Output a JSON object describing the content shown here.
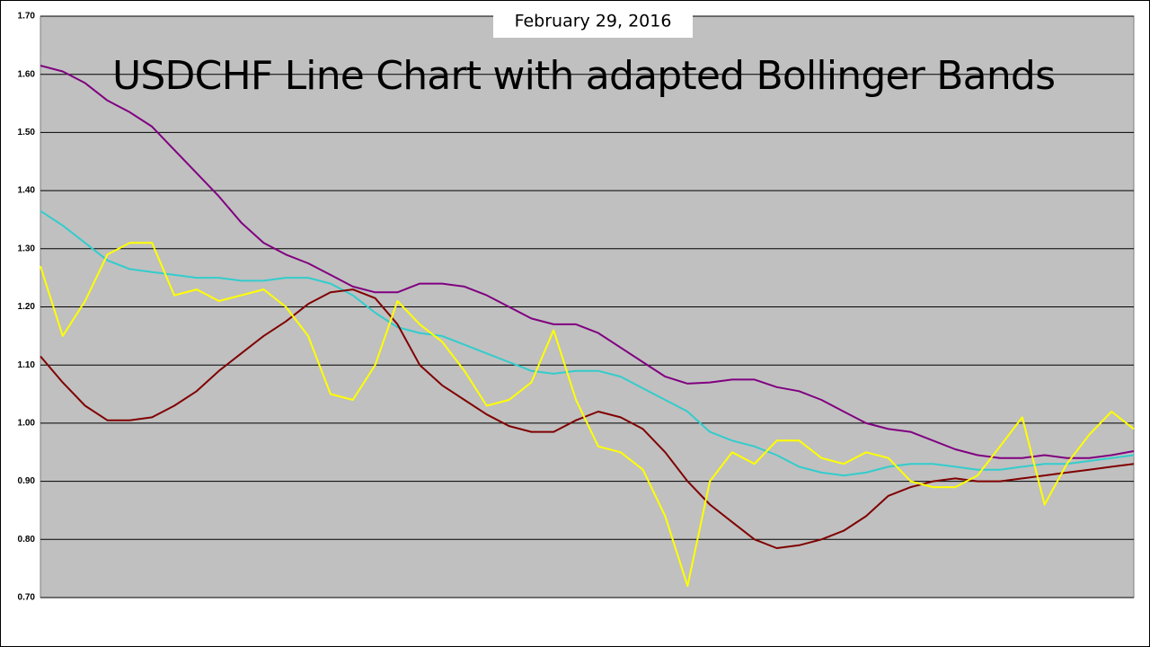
{
  "chart_data": {
    "type": "line",
    "title": "USDCHF Line Chart with adapted Bollinger Bands",
    "subtitle": "February 29, 2016",
    "ylim": [
      0.7,
      1.7
    ],
    "yticks": [
      {
        "value": 0.7,
        "label": "0.70"
      },
      {
        "value": 0.8,
        "label": "0.80"
      },
      {
        "value": 0.9,
        "label": "0.90"
      },
      {
        "value": 1.0,
        "label": "1.00"
      },
      {
        "value": 1.1,
        "label": "1.10"
      },
      {
        "value": 1.2,
        "label": "1.20"
      },
      {
        "value": 1.3,
        "label": "1.30"
      },
      {
        "value": 1.4,
        "label": "1.40"
      },
      {
        "value": 1.5,
        "label": "1.50"
      },
      {
        "value": 1.6,
        "label": "1.60"
      },
      {
        "value": 1.7,
        "label": "1.70"
      }
    ],
    "grid": true,
    "series": [
      {
        "color": "#33cccc",
        "values": [
          1.365,
          1.34,
          1.31,
          1.28,
          1.265,
          1.26,
          1.255,
          1.25,
          1.25,
          1.245,
          1.245,
          1.25,
          1.25,
          1.24,
          1.22,
          1.19,
          1.165,
          1.155,
          1.15,
          1.135,
          1.12,
          1.105,
          1.09,
          1.085,
          1.09,
          1.09,
          1.08,
          1.06,
          1.04,
          1.02,
          0.985,
          0.97,
          0.96,
          0.945,
          0.925,
          0.915,
          0.91,
          0.915,
          0.925,
          0.93,
          0.93,
          0.925,
          0.92,
          0.92,
          0.925,
          0.93,
          0.93,
          0.935,
          0.94,
          0.945
        ]
      },
      {
        "color": "#800000",
        "values": [
          1.115,
          1.07,
          1.03,
          1.005,
          1.005,
          1.01,
          1.03,
          1.055,
          1.09,
          1.12,
          1.15,
          1.175,
          1.205,
          1.225,
          1.23,
          1.215,
          1.17,
          1.1,
          1.065,
          1.04,
          1.015,
          0.995,
          0.985,
          0.985,
          1.005,
          1.02,
          1.01,
          0.99,
          0.95,
          0.9,
          0.86,
          0.83,
          0.8,
          0.785,
          0.79,
          0.8,
          0.815,
          0.84,
          0.875,
          0.89,
          0.9,
          0.905,
          0.9,
          0.9,
          0.905,
          0.91,
          0.915,
          0.92,
          0.925,
          0.93
        ]
      },
      {
        "color": "#800080",
        "values": [
          1.615,
          1.605,
          1.585,
          1.555,
          1.535,
          1.51,
          1.47,
          1.43,
          1.39,
          1.345,
          1.31,
          1.29,
          1.275,
          1.255,
          1.235,
          1.225,
          1.225,
          1.24,
          1.24,
          1.235,
          1.22,
          1.2,
          1.18,
          1.17,
          1.17,
          1.155,
          1.13,
          1.105,
          1.08,
          1.068,
          1.07,
          1.075,
          1.075,
          1.062,
          1.055,
          1.04,
          1.02,
          1.0,
          0.99,
          0.985,
          0.97,
          0.955,
          0.945,
          0.94,
          0.94,
          0.945,
          0.94,
          0.94,
          0.945,
          0.952
        ]
      },
      {
        "color": "#ffff00",
        "values": [
          1.27,
          1.15,
          1.21,
          1.29,
          1.31,
          1.31,
          1.22,
          1.23,
          1.21,
          1.22,
          1.23,
          1.2,
          1.15,
          1.05,
          1.04,
          1.1,
          1.21,
          1.17,
          1.14,
          1.09,
          1.03,
          1.04,
          1.07,
          1.16,
          1.04,
          0.96,
          0.95,
          0.92,
          0.84,
          0.72,
          0.9,
          0.95,
          0.93,
          0.97,
          0.97,
          0.94,
          0.93,
          0.95,
          0.94,
          0.9,
          0.89,
          0.89,
          0.91,
          0.96,
          1.01,
          0.86,
          0.93,
          0.98,
          1.02,
          0.99
        ]
      }
    ]
  }
}
